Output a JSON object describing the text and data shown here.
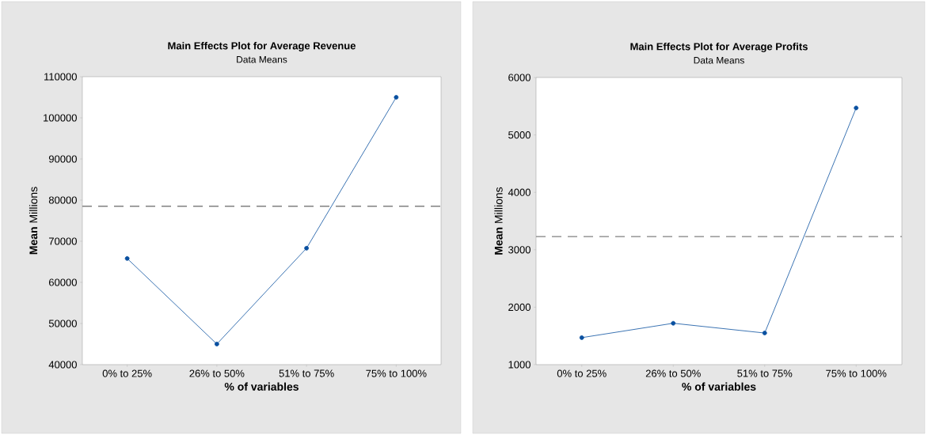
{
  "chart_data": [
    {
      "type": "line",
      "title": "Main Effects Plot for Average Revenue",
      "subtitle": "Data Means",
      "xlabel": "% of variables",
      "ylabel": "**Mean** Millions",
      "categories": [
        "0% to 25%",
        "26% to 50%",
        "51% to 75%",
        "75% to 100%"
      ],
      "series": [
        {
          "color": "#0a50a0",
          "values": [
            65800,
            45000,
            68300,
            105000
          ]
        }
      ],
      "ylim": [
        40000,
        110000
      ],
      "yticks": [
        40000,
        50000,
        60000,
        70000,
        80000,
        90000,
        100000,
        110000
      ],
      "marker": "circle",
      "ref_lines": [
        {
          "axis": "y",
          "value": 78500,
          "color": "#808080",
          "line_style": "dashed"
        }
      ]
    },
    {
      "type": "line",
      "title": "Main Effects Plot for Average Profits",
      "subtitle": "Data Means",
      "xlabel": "% of variables",
      "ylabel": "**Mean** Millions",
      "categories": [
        "0% to 25%",
        "26% to 50%",
        "51% to 75%",
        "75% to 100%"
      ],
      "series": [
        {
          "color": "#0a50a0",
          "values": [
            1470,
            1720,
            1550,
            5470
          ]
        }
      ],
      "ylim": [
        1000,
        6000
      ],
      "yticks": [
        1000,
        2000,
        3000,
        4000,
        5000,
        6000
      ],
      "marker": "circle",
      "ref_lines": [
        {
          "axis": "y",
          "value": 3230,
          "color": "#808080",
          "line_style": "dashed"
        }
      ]
    }
  ]
}
